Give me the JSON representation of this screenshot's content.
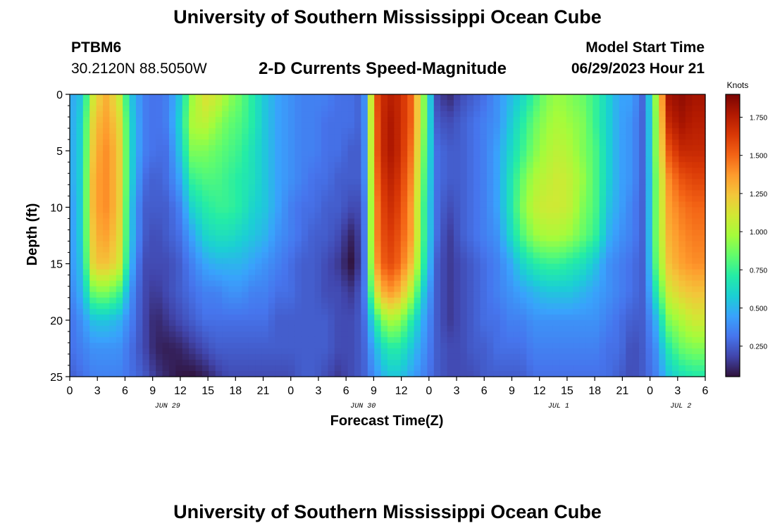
{
  "header": {
    "title": "University of Southern Mississippi Ocean Cube",
    "station": "PTBM6",
    "location": "30.2120N  88.5050W",
    "subtitle": "2-D Currents Speed-Magnitude",
    "start_label": "Model Start Time",
    "start_value": "06/29/2023 Hour 21"
  },
  "footer": {
    "title": "University of Southern Mississippi Ocean Cube"
  },
  "chart_data": {
    "type": "heatmap",
    "title": "2-D Currents Speed-Magnitude",
    "xlabel": "Forecast Time(Z)",
    "ylabel": "Depth (ft)",
    "x_range_hours": [
      0,
      78
    ],
    "x_tick_labels": [
      "0",
      "3",
      "6",
      "9",
      "12",
      "15",
      "18",
      "21",
      "0",
      "3",
      "6",
      "9",
      "12",
      "0",
      "3",
      "6",
      "9",
      "12",
      "15",
      "18",
      "21",
      "0",
      "3",
      "6"
    ],
    "date_labels": [
      {
        "label": "JUN 29",
        "hour": 12
      },
      {
        "label": "JUN 30",
        "hour": 36
      },
      {
        "label": "JUL 1",
        "hour": 60
      },
      {
        "label": "JUL 2",
        "hour": 75
      }
    ],
    "y_range": [
      0,
      25
    ],
    "y_ticks": [
      0,
      5,
      10,
      15,
      20,
      25
    ],
    "colorbar": {
      "label": "Knots",
      "range": [
        0.05,
        1.9
      ],
      "ticks": [
        "1.750",
        "1.500",
        "1.250",
        "1.000",
        "0.750",
        "0.500",
        "0.250"
      ],
      "tick_values": [
        1.75,
        1.5,
        1.25,
        1.0,
        0.75,
        0.5,
        0.25
      ]
    },
    "colormap": [
      "#30123b",
      "#4145ab",
      "#4675ed",
      "#39a2fc",
      "#1bcfd4",
      "#24eca6",
      "#61fc6c",
      "#a4fc3b",
      "#d1e834",
      "#f3c63a",
      "#fe9b2d",
      "#f36315",
      "#d93806",
      "#b11901",
      "#7a0403"
    ],
    "grid": {
      "col_hours": [
        0,
        1.5,
        3,
        4.5,
        6,
        7.5,
        9,
        10.5,
        12,
        13.5,
        15,
        16.5,
        18,
        19.5,
        21,
        22.5,
        24,
        25.5,
        27,
        28.5,
        30,
        31.5,
        33,
        34.5,
        36,
        37.5,
        39,
        40.5,
        42,
        43.5,
        45,
        46.5,
        48,
        49.5,
        51,
        52.5,
        54,
        55.5,
        57,
        58.5,
        60,
        61.5,
        63,
        64.5,
        66,
        67.5,
        69,
        70.5,
        72,
        73.5,
        75,
        76.5
      ],
      "row_depths": [
        0,
        2.5,
        5,
        7.5,
        10,
        12.5,
        15,
        17.5,
        20,
        22.5,
        25
      ],
      "speed_knots": [
        [
          0.45,
          0.55,
          1.15,
          1.3,
          1.1,
          0.55,
          0.35,
          0.3,
          0.35,
          0.55,
          0.95,
          1.15,
          1.1,
          0.95,
          0.85,
          0.7,
          0.55,
          0.45,
          0.4,
          0.35,
          0.35,
          0.35,
          0.3,
          0.3,
          0.25,
          1.55,
          1.75,
          1.7,
          1.5,
          0.9,
          0.2,
          0.1,
          0.2,
          0.25,
          0.3,
          0.4,
          0.5,
          0.6,
          0.75,
          0.9,
          0.95,
          0.9,
          0.85,
          0.75,
          0.6,
          0.45,
          0.45,
          0.25,
          1.0,
          1.8,
          1.85,
          1.8
        ],
        [
          0.45,
          0.6,
          1.25,
          1.35,
          1.2,
          0.6,
          0.35,
          0.3,
          0.35,
          0.6,
          1.0,
          1.05,
          0.95,
          0.85,
          0.8,
          0.7,
          0.55,
          0.45,
          0.4,
          0.35,
          0.35,
          0.3,
          0.3,
          0.3,
          0.25,
          1.5,
          1.8,
          1.7,
          1.5,
          0.9,
          0.25,
          0.2,
          0.25,
          0.3,
          0.35,
          0.4,
          0.55,
          0.7,
          0.85,
          0.95,
          1.0,
          0.95,
          0.9,
          0.75,
          0.6,
          0.45,
          0.4,
          0.25,
          0.95,
          1.7,
          1.8,
          1.75
        ],
        [
          0.45,
          0.6,
          1.3,
          1.4,
          1.25,
          0.6,
          0.35,
          0.3,
          0.3,
          0.55,
          0.9,
          0.9,
          0.85,
          0.8,
          0.75,
          0.65,
          0.55,
          0.45,
          0.4,
          0.35,
          0.35,
          0.3,
          0.3,
          0.25,
          0.25,
          1.5,
          1.8,
          1.7,
          1.45,
          0.85,
          0.3,
          0.25,
          0.25,
          0.3,
          0.35,
          0.45,
          0.6,
          0.75,
          0.9,
          1.0,
          1.05,
          1.0,
          0.9,
          0.8,
          0.6,
          0.45,
          0.4,
          0.25,
          0.95,
          1.55,
          1.7,
          1.7
        ],
        [
          0.45,
          0.6,
          1.35,
          1.4,
          1.25,
          0.6,
          0.3,
          0.25,
          0.3,
          0.45,
          0.75,
          0.8,
          0.8,
          0.75,
          0.7,
          0.65,
          0.55,
          0.45,
          0.4,
          0.35,
          0.3,
          0.3,
          0.25,
          0.25,
          0.25,
          1.45,
          1.75,
          1.65,
          1.4,
          0.8,
          0.3,
          0.25,
          0.25,
          0.3,
          0.35,
          0.45,
          0.65,
          0.85,
          1.0,
          1.05,
          1.1,
          1.05,
          0.95,
          0.8,
          0.6,
          0.45,
          0.4,
          0.25,
          0.9,
          1.4,
          1.55,
          1.6
        ],
        [
          0.4,
          0.6,
          1.35,
          1.4,
          1.25,
          0.55,
          0.25,
          0.25,
          0.25,
          0.35,
          0.6,
          0.7,
          0.75,
          0.75,
          0.7,
          0.6,
          0.55,
          0.45,
          0.35,
          0.3,
          0.3,
          0.25,
          0.25,
          0.2,
          0.2,
          1.4,
          1.7,
          1.6,
          1.35,
          0.75,
          0.3,
          0.2,
          0.25,
          0.3,
          0.35,
          0.45,
          0.65,
          0.9,
          1.05,
          1.1,
          1.1,
          1.05,
          0.9,
          0.8,
          0.55,
          0.45,
          0.35,
          0.25,
          0.9,
          1.35,
          1.45,
          1.5
        ],
        [
          0.4,
          0.6,
          1.3,
          1.35,
          1.2,
          0.55,
          0.25,
          0.2,
          0.25,
          0.3,
          0.45,
          0.6,
          0.65,
          0.65,
          0.6,
          0.55,
          0.5,
          0.4,
          0.35,
          0.3,
          0.25,
          0.25,
          0.2,
          0.1,
          0.2,
          1.4,
          1.65,
          1.55,
          1.35,
          0.75,
          0.3,
          0.15,
          0.25,
          0.3,
          0.35,
          0.4,
          0.6,
          0.8,
          0.95,
          1.0,
          1.0,
          0.95,
          0.85,
          0.75,
          0.5,
          0.4,
          0.35,
          0.25,
          0.9,
          1.3,
          1.4,
          1.45
        ],
        [
          0.4,
          0.55,
          1.25,
          1.25,
          1.15,
          0.5,
          0.2,
          0.2,
          0.2,
          0.25,
          0.35,
          0.45,
          0.5,
          0.5,
          0.5,
          0.45,
          0.4,
          0.35,
          0.3,
          0.25,
          0.25,
          0.2,
          0.15,
          0.05,
          0.2,
          1.35,
          1.6,
          1.5,
          1.25,
          0.7,
          0.25,
          0.15,
          0.2,
          0.25,
          0.3,
          0.35,
          0.45,
          0.6,
          0.7,
          0.75,
          0.75,
          0.7,
          0.65,
          0.55,
          0.4,
          0.35,
          0.3,
          0.25,
          0.85,
          1.25,
          1.35,
          1.4
        ],
        [
          0.35,
          0.5,
          0.9,
          0.9,
          0.8,
          0.4,
          0.2,
          0.15,
          0.2,
          0.25,
          0.3,
          0.35,
          0.35,
          0.4,
          0.4,
          0.35,
          0.35,
          0.3,
          0.3,
          0.25,
          0.25,
          0.2,
          0.2,
          0.15,
          0.25,
          1.1,
          1.4,
          1.3,
          1.0,
          0.55,
          0.25,
          0.15,
          0.2,
          0.25,
          0.3,
          0.35,
          0.4,
          0.45,
          0.5,
          0.55,
          0.55,
          0.55,
          0.5,
          0.45,
          0.4,
          0.35,
          0.3,
          0.25,
          0.7,
          1.1,
          1.2,
          1.25
        ],
        [
          0.3,
          0.4,
          0.55,
          0.55,
          0.5,
          0.35,
          0.2,
          0.1,
          0.15,
          0.2,
          0.25,
          0.3,
          0.3,
          0.3,
          0.3,
          0.3,
          0.3,
          0.25,
          0.25,
          0.25,
          0.25,
          0.25,
          0.2,
          0.2,
          0.25,
          0.7,
          1.0,
          0.95,
          0.7,
          0.45,
          0.25,
          0.15,
          0.2,
          0.25,
          0.3,
          0.3,
          0.35,
          0.35,
          0.4,
          0.4,
          0.4,
          0.4,
          0.4,
          0.4,
          0.35,
          0.3,
          0.25,
          0.25,
          0.5,
          0.9,
          1.0,
          1.1
        ],
        [
          0.3,
          0.35,
          0.4,
          0.4,
          0.4,
          0.3,
          0.2,
          0.1,
          0.08,
          0.1,
          0.15,
          0.2,
          0.25,
          0.25,
          0.25,
          0.25,
          0.25,
          0.25,
          0.25,
          0.25,
          0.25,
          0.25,
          0.2,
          0.2,
          0.25,
          0.5,
          0.7,
          0.7,
          0.55,
          0.4,
          0.25,
          0.2,
          0.2,
          0.25,
          0.25,
          0.3,
          0.3,
          0.3,
          0.35,
          0.35,
          0.35,
          0.35,
          0.35,
          0.35,
          0.3,
          0.3,
          0.2,
          0.25,
          0.4,
          0.7,
          0.85,
          0.9
        ],
        [
          0.25,
          0.3,
          0.35,
          0.35,
          0.35,
          0.3,
          0.25,
          0.15,
          0.1,
          0.06,
          0.05,
          0.08,
          0.15,
          0.2,
          0.2,
          0.2,
          0.2,
          0.2,
          0.2,
          0.25,
          0.25,
          0.2,
          0.15,
          0.2,
          0.25,
          0.4,
          0.55,
          0.55,
          0.45,
          0.35,
          0.25,
          0.2,
          0.2,
          0.2,
          0.25,
          0.25,
          0.25,
          0.25,
          0.3,
          0.3,
          0.3,
          0.3,
          0.3,
          0.3,
          0.3,
          0.25,
          0.2,
          0.25,
          0.35,
          0.55,
          0.65,
          0.7
        ]
      ]
    }
  }
}
